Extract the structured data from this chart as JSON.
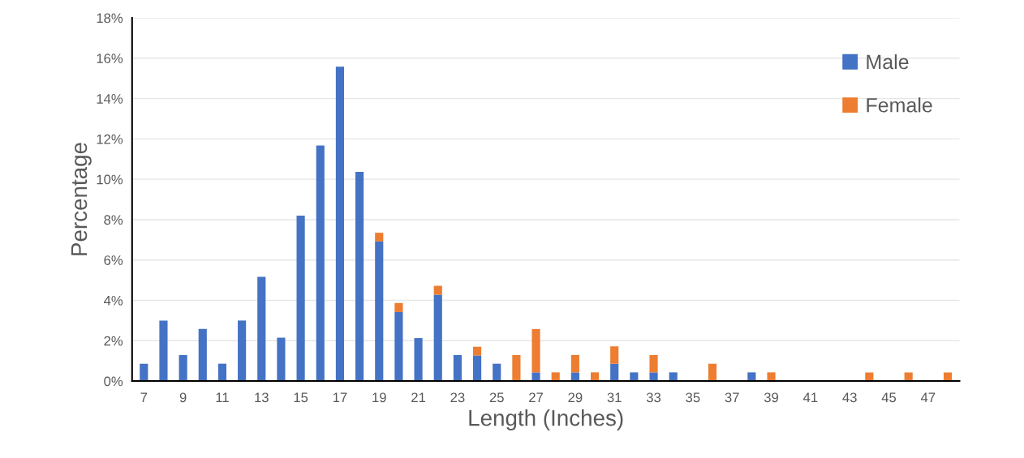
{
  "chart_data": {
    "type": "bar",
    "stacked": true,
    "xlabel": "Length (Inches)",
    "ylabel": "Percentage",
    "categories": [
      "7",
      null,
      "9",
      null,
      "11",
      null,
      "13",
      null,
      "15",
      null,
      "17",
      null,
      "19",
      null,
      "21",
      null,
      "23",
      null,
      "25",
      null,
      "27",
      null,
      "29",
      null,
      "31",
      null,
      "33",
      null,
      "35",
      null,
      "37",
      null,
      "39",
      null,
      "41",
      null,
      "43",
      null,
      "45",
      null,
      "47",
      null
    ],
    "series": [
      {
        "name": "Male",
        "color": "#4472c4",
        "values": [
          0.86,
          3.0,
          1.29,
          2.58,
          0.86,
          3.0,
          5.17,
          2.15,
          8.2,
          11.67,
          15.58,
          10.37,
          6.92,
          3.42,
          2.13,
          4.28,
          1.29,
          1.27,
          0.86,
          0,
          0.43,
          0,
          0.43,
          0,
          0.86,
          0.43,
          0.43,
          0.43,
          0,
          0,
          0,
          0.43,
          0,
          0,
          0,
          0,
          0,
          0,
          0,
          0,
          0,
          0
        ]
      },
      {
        "name": "Female",
        "color": "#ed7d31",
        "values": [
          0,
          0,
          0,
          0,
          0,
          0,
          0,
          0,
          0,
          0,
          0,
          0,
          0.43,
          0.45,
          0,
          0.44,
          0,
          0.43,
          0,
          1.29,
          2.15,
          0.43,
          0.86,
          0.43,
          0.86,
          0,
          0.86,
          0,
          0,
          0.86,
          0,
          0,
          0.43,
          0,
          0,
          0,
          0,
          0.43,
          0,
          0.43,
          0,
          0.43
        ]
      }
    ],
    "ylim": [
      0,
      18
    ],
    "yticks": [
      {
        "value": 0,
        "label": "0%"
      },
      {
        "value": 2,
        "label": "2%"
      },
      {
        "value": 4,
        "label": "4%"
      },
      {
        "value": 6,
        "label": "6%"
      },
      {
        "value": 8,
        "label": "8%"
      },
      {
        "value": 10,
        "label": "10%"
      },
      {
        "value": 12,
        "label": "12%"
      },
      {
        "value": 14,
        "label": "14%"
      },
      {
        "value": 16,
        "label": "16%"
      },
      {
        "value": 18,
        "label": "18%"
      }
    ],
    "grid": "y",
    "legend": "top right"
  }
}
